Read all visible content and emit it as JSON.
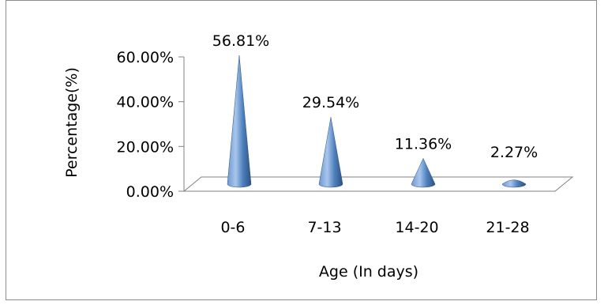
{
  "chart_data": {
    "type": "bar",
    "style": "3d-cone",
    "categories": [
      "0-6",
      "7-13",
      "14-20",
      "21-28"
    ],
    "values": [
      56.81,
      29.54,
      11.36,
      2.27
    ],
    "data_labels": [
      "56.81%",
      "29.54%",
      "11.36%",
      "2.27%"
    ],
    "xlabel": "Age (In days)",
    "ylabel": "Percentage(%)",
    "ylim": [
      0,
      60
    ],
    "yticks": [
      {
        "value": 0,
        "label": "0.00%"
      },
      {
        "value": 20,
        "label": "20.00%"
      },
      {
        "value": 40,
        "label": "40.00%"
      },
      {
        "value": 60,
        "label": "60.00%"
      }
    ],
    "legend": "none",
    "grid": false,
    "colors": {
      "cone_light": "#8fb3e0",
      "cone_mid": "#4f81bd",
      "cone_dark": "#2c5281",
      "floor": "#ffffff",
      "axis": "#808080"
    }
  }
}
